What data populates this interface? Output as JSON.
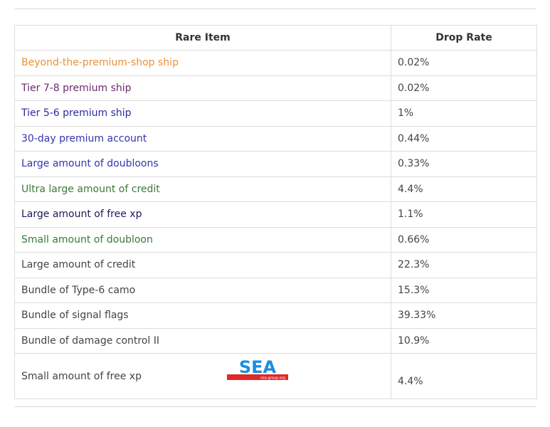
{
  "table": {
    "headers": [
      "Rare Item",
      "Drop Rate"
    ],
    "rows": [
      {
        "item": "Beyond-the-premium-shop ship",
        "rate": "0.02%",
        "color": "#e8913a"
      },
      {
        "item": "Tier 7-8 premium ship",
        "rate": "0.02%",
        "color": "#6a2a6a"
      },
      {
        "item": "Tier 5-6 premium ship",
        "rate": "1%",
        "color": "#2b2ba0"
      },
      {
        "item": "30-day premium account",
        "rate": "0.44%",
        "color": "#3333b0"
      },
      {
        "item": "Large amount of doubloons",
        "rate": "0.33%",
        "color": "#3333b0"
      },
      {
        "item": "Ultra large amount of credit",
        "rate": "4.4%",
        "color": "#3a7a3a"
      },
      {
        "item": "Large amount of free xp",
        "rate": "1.1%",
        "color": "#1a1a5a"
      },
      {
        "item": "Small amount of doubloon",
        "rate": "0.66%",
        "color": "#3a7a3a"
      },
      {
        "item": "Large amount of credit",
        "rate": "22.3%",
        "color": "#444444"
      },
      {
        "item": "Bundle of Type-6 camo",
        "rate": "15.3%",
        "color": "#444444"
      },
      {
        "item": "Bundle of signal flags",
        "rate": "39.33%",
        "color": "#444444"
      },
      {
        "item": "Bundle of damage control II",
        "rate": "10.9%",
        "color": "#444444"
      },
      {
        "item": "Small amount of free xp",
        "rate": "4.4%",
        "color": "#444444"
      }
    ]
  },
  "watermark": {
    "text": "SEA",
    "subtext": "sea-group.org"
  }
}
